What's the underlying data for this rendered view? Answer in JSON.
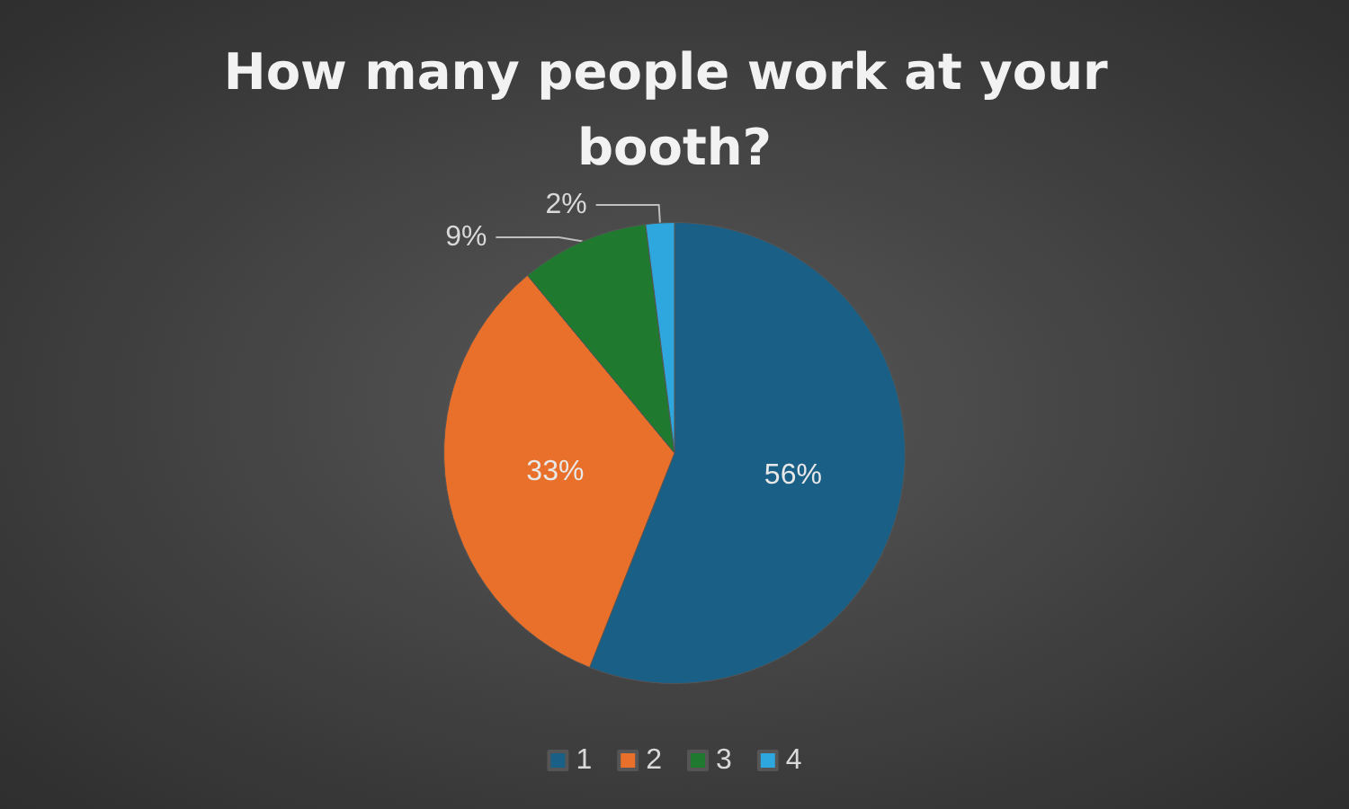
{
  "chart_data": {
    "type": "pie",
    "title": "How many people work at your booth?",
    "categories": [
      "1",
      "2",
      "3",
      "4"
    ],
    "values": [
      56,
      33,
      9,
      2
    ],
    "value_labels": [
      "56%",
      "33%",
      "9%",
      "2%"
    ],
    "colors": [
      "#1a5f86",
      "#e8702a",
      "#1f7a30",
      "#2ea7de"
    ],
    "legend": "bottom"
  }
}
